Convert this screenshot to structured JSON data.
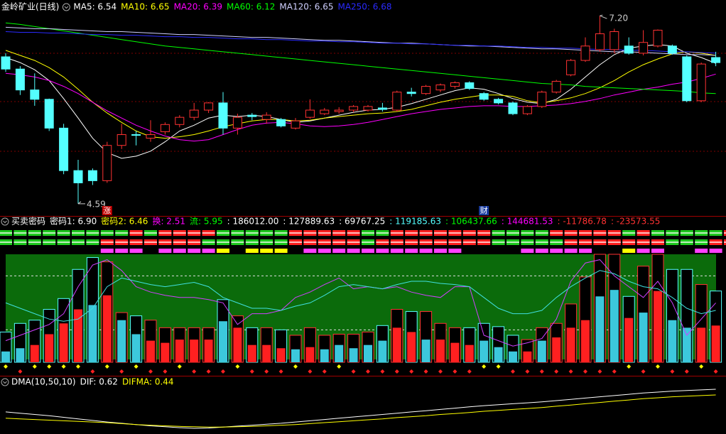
{
  "chart_data": [
    {
      "type": "candlestick",
      "title": "金岭矿业(日线)",
      "ylim": [
        4.46,
        7.34
      ],
      "up_color": "#ff3232",
      "down_color": "#54ffff",
      "open": [
        6.63,
        6.46,
        6.17,
        6.04,
        5.64,
        5.05,
        5.05,
        4.91,
        5.4,
        5.55,
        5.5,
        5.59,
        5.69,
        5.79,
        5.89,
        5.99,
        5.64,
        5.82,
        5.76,
        5.76,
        5.64,
        5.79,
        5.84,
        5.87,
        5.89,
        5.89,
        5.92,
        5.89,
        6.14,
        6.12,
        6.17,
        6.22,
        6.27,
        6.12,
        6.04,
        5.99,
        5.84,
        5.94,
        6.14,
        6.38,
        6.58,
        6.73,
        6.73,
        6.78,
        6.68,
        6.78,
        6.78,
        6.63,
        6.02,
        6.62
      ],
      "high": [
        6.68,
        6.5,
        6.4,
        6.05,
        5.7,
        5.2,
        5.08,
        5.45,
        5.7,
        5.6,
        5.75,
        5.72,
        5.82,
        5.99,
        6.0,
        6.14,
        5.84,
        5.85,
        5.86,
        5.78,
        5.78,
        6.04,
        5.92,
        5.93,
        5.96,
        5.96,
        5.99,
        6.16,
        6.2,
        6.24,
        6.26,
        6.29,
        6.29,
        6.14,
        6.06,
        6.01,
        5.96,
        6.16,
        6.31,
        6.6,
        6.9,
        7.2,
        7.02,
        6.9,
        7.0,
        7.01,
        6.8,
        6.65,
        6.55,
        6.7
      ],
      "low": [
        6.42,
        6.1,
        5.95,
        5.6,
        5.0,
        4.59,
        4.85,
        4.88,
        5.35,
        5.4,
        5.45,
        5.55,
        5.65,
        5.75,
        5.85,
        5.55,
        5.55,
        5.75,
        5.7,
        5.65,
        5.62,
        5.77,
        5.82,
        5.84,
        5.86,
        5.87,
        5.87,
        5.87,
        6.08,
        6.1,
        6.14,
        6.19,
        6.17,
        6.02,
        5.97,
        5.82,
        5.82,
        5.92,
        6.12,
        6.36,
        6.56,
        6.7,
        6.68,
        6.66,
        6.65,
        6.76,
        6.66,
        6.0,
        6.0,
        6.5
      ],
      "close": [
        6.46,
        6.17,
        6.04,
        5.64,
        5.05,
        4.88,
        4.91,
        5.4,
        5.55,
        5.54,
        5.55,
        5.69,
        5.79,
        5.89,
        5.99,
        5.64,
        5.79,
        5.8,
        5.82,
        5.67,
        5.74,
        5.89,
        5.89,
        5.89,
        5.94,
        5.94,
        5.9,
        6.14,
        6.12,
        6.22,
        6.24,
        6.27,
        6.19,
        6.04,
        5.99,
        5.84,
        5.94,
        6.14,
        6.29,
        6.58,
        6.78,
        6.95,
        6.98,
        6.68,
        6.83,
        7.0,
        6.68,
        6.02,
        6.53,
        6.55
      ],
      "series": [
        {
          "name": "MA5: 6.54",
          "color": "#ffffff",
          "values": [
            6.62,
            6.55,
            6.45,
            6.3,
            6.05,
            5.78,
            5.5,
            5.3,
            5.22,
            5.25,
            5.32,
            5.45,
            5.6,
            5.68,
            5.78,
            5.82,
            5.8,
            5.82,
            5.8,
            5.76,
            5.72,
            5.74,
            5.78,
            5.82,
            5.86,
            5.89,
            5.9,
            5.93,
            5.98,
            6.04,
            6.1,
            6.16,
            6.2,
            6.18,
            6.12,
            6.05,
            6.0,
            5.98,
            6.04,
            6.18,
            6.35,
            6.52,
            6.66,
            6.75,
            6.78,
            6.8,
            6.78,
            6.68,
            6.62,
            6.54
          ]
        },
        {
          "name": "MA10: 6.65",
          "color": "#ffff00",
          "values": [
            6.72,
            6.65,
            6.58,
            6.48,
            6.35,
            6.18,
            6.0,
            5.85,
            5.72,
            5.6,
            5.52,
            5.5,
            5.52,
            5.55,
            5.6,
            5.66,
            5.7,
            5.74,
            5.76,
            5.76,
            5.74,
            5.75,
            5.78,
            5.8,
            5.82,
            5.84,
            5.85,
            5.87,
            5.9,
            5.95,
            6.0,
            6.04,
            6.07,
            6.1,
            6.1,
            6.08,
            6.02,
            5.99,
            6.02,
            6.06,
            6.12,
            6.2,
            6.3,
            6.42,
            6.52,
            6.6,
            6.67,
            6.7,
            6.68,
            6.65
          ]
        },
        {
          "name": "MA20: 6.39",
          "color": "#ff00ff",
          "values": [
            6.4,
            6.38,
            6.35,
            6.3,
            6.22,
            6.12,
            6.0,
            5.88,
            5.78,
            5.68,
            5.6,
            5.53,
            5.48,
            5.46,
            5.48,
            5.55,
            5.62,
            5.68,
            5.71,
            5.72,
            5.7,
            5.67,
            5.66,
            5.67,
            5.69,
            5.72,
            5.76,
            5.8,
            5.84,
            5.87,
            5.9,
            5.92,
            5.94,
            5.95,
            5.95,
            5.94,
            5.94,
            5.95,
            5.96,
            5.98,
            6.01,
            6.05,
            6.1,
            6.14,
            6.18,
            6.21,
            6.25,
            6.28,
            6.33,
            6.39
          ]
        },
        {
          "name": "MA60: 6.12",
          "color": "#00ff00",
          "values": [
            7.1,
            7.08,
            7.05,
            7.02,
            6.99,
            6.96,
            6.93,
            6.9,
            6.87,
            6.84,
            6.81,
            6.78,
            6.76,
            6.74,
            6.72,
            6.7,
            6.68,
            6.66,
            6.64,
            6.62,
            6.6,
            6.58,
            6.56,
            6.54,
            6.52,
            6.5,
            6.48,
            6.46,
            6.44,
            6.42,
            6.4,
            6.38,
            6.36,
            6.34,
            6.32,
            6.3,
            6.28,
            6.26,
            6.25,
            6.24,
            6.22,
            6.21,
            6.2,
            6.19,
            6.18,
            6.17,
            6.16,
            6.15,
            6.13,
            6.12
          ]
        },
        {
          "name": "MA120: 6.65",
          "color": "#d0d0ff",
          "values": [
            7.04,
            7.03,
            7.02,
            7.02,
            7.01,
            7.0,
            6.99,
            6.98,
            6.98,
            6.97,
            6.96,
            6.95,
            6.94,
            6.94,
            6.93,
            6.92,
            6.91,
            6.9,
            6.9,
            6.89,
            6.88,
            6.87,
            6.86,
            6.86,
            6.85,
            6.84,
            6.83,
            6.82,
            6.82,
            6.81,
            6.8,
            6.79,
            6.78,
            6.78,
            6.77,
            6.76,
            6.75,
            6.74,
            6.74,
            6.73,
            6.72,
            6.71,
            6.7,
            6.7,
            6.69,
            6.68,
            6.67,
            6.66,
            6.66,
            6.65
          ]
        },
        {
          "name": "MA250: 6.68",
          "color": "#2a2aff",
          "values": [
            6.98,
            6.97,
            6.97,
            6.96,
            6.96,
            6.95,
            6.94,
            6.94,
            6.93,
            6.93,
            6.92,
            6.91,
            6.91,
            6.9,
            6.9,
            6.89,
            6.88,
            6.88,
            6.87,
            6.87,
            6.86,
            6.85,
            6.85,
            6.84,
            6.84,
            6.83,
            6.82,
            6.82,
            6.81,
            6.81,
            6.8,
            6.79,
            6.79,
            6.78,
            6.78,
            6.77,
            6.76,
            6.76,
            6.75,
            6.75,
            6.74,
            6.73,
            6.73,
            6.72,
            6.72,
            6.71,
            6.7,
            6.7,
            6.69,
            6.68
          ]
        }
      ],
      "high_label": "7.20",
      "low_label": "4.59",
      "events": [
        null,
        null,
        null,
        null,
        null,
        null,
        null,
        {
          "text": "涨",
          "color": "#c00000"
        },
        null,
        null,
        null,
        null,
        null,
        null,
        null,
        null,
        null,
        null,
        null,
        null,
        null,
        null,
        null,
        null,
        null,
        null,
        null,
        null,
        null,
        null,
        null,
        null,
        null,
        {
          "text": "财",
          "color": "#1a3ca0"
        },
        null,
        null,
        null,
        null,
        null,
        null,
        null,
        null,
        null,
        null,
        null,
        null,
        null,
        null,
        null,
        null
      ]
    },
    {
      "type": "bar",
      "title": "买卖密码",
      "readouts": [
        {
          "text": "密码1: 6.90",
          "color": "#ffffff"
        },
        {
          "text": "密码2: 6.46",
          "color": "#ffff00"
        },
        {
          "text": "换: 2.51",
          "color": "#ff00ff"
        },
        {
          "text": "流: 5.95",
          "color": "#00ff00"
        },
        {
          "text": ": 186012.00",
          "color": "#ffffff"
        },
        {
          "text": ": 127889.63",
          "color": "#ffffff"
        },
        {
          "text": ": 69767.25",
          "color": "#ffffff"
        },
        {
          "text": ": 119185.63",
          "color": "#54ffff"
        },
        {
          "text": ": 106437.66",
          "color": "#00ff00"
        },
        {
          "text": ": 144681.53",
          "color": "#ff00ff"
        },
        {
          "text": ": -11786.78",
          "color": "#ff3232"
        },
        {
          "text": ": -23573.55",
          "color": "#ff3232"
        }
      ],
      "ylim": [
        0,
        100
      ],
      "levels": [
        30,
        80
      ],
      "background": "#0b6b0b",
      "outline_values": [
        28,
        36,
        39,
        49,
        59,
        86,
        97,
        93,
        46,
        43,
        39,
        32,
        32,
        32,
        32,
        58,
        43,
        32,
        32,
        30,
        25,
        32,
        25,
        26,
        26,
        28,
        34,
        49,
        47,
        47,
        36,
        32,
        32,
        36,
        33,
        25,
        21,
        32,
        36,
        54,
        79,
        100,
        100,
        61,
        89,
        100,
        86,
        86,
        72,
        66
      ],
      "fill_values": [
        10,
        13,
        16,
        26,
        36,
        49,
        53,
        62,
        39,
        26,
        20,
        18,
        21,
        21,
        21,
        38,
        32,
        16,
        16,
        13,
        12,
        14,
        12,
        16,
        13,
        16,
        20,
        32,
        28,
        21,
        21,
        18,
        16,
        20,
        14,
        10,
        10,
        20,
        23,
        32,
        39,
        61,
        67,
        41,
        46,
        66,
        39,
        32,
        32,
        34
      ],
      "fill_codes": "CCRRRRCRCCRRRRRCRRRRCRCCCCCRRCRRRCCCRCRRRCCRCRCCRR",
      "code_colors": {
        "G": "#1ec81e",
        "R": "#ff2020",
        "M": "#ff40ff",
        "Y": "#ffff00",
        "C": "#3cc8dc"
      },
      "rows": [
        "GGGGGGGGGRGRRRRGGGGGRRRRRGGRRRRRRRGGGGRRRRRGRGGGGGRG",
        "GGGGGGGRRRRRRRGGGGGGRRRRRGRRRRRRRRGGGGGRRRRRRRGGGRRG",
        "-------MMM-MMMMY-YYY-MMMMMMMMMMM----MMMMM--YMM--MM"
      ],
      "diamonds": "YRYYYYRYRYRRYRRRYRRRYRRYRRRRRRRRRYYRRRRRRRRYRYRRYR",
      "series": [
        {
          "color": "#d040ff",
          "values": [
            20,
            25,
            30,
            35,
            45,
            70,
            90,
            95,
            85,
            70,
            65,
            62,
            60,
            60,
            58,
            55,
            35,
            45,
            45,
            48,
            60,
            65,
            72,
            78,
            68,
            70,
            68,
            70,
            65,
            62,
            60,
            70,
            70,
            25,
            20,
            15,
            18,
            22,
            40,
            75,
            92,
            95,
            80,
            70,
            60,
            75,
            55,
            25,
            40,
            55
          ]
        },
        {
          "color": "#40e0e0",
          "values": [
            55,
            50,
            45,
            40,
            38,
            40,
            50,
            70,
            78,
            75,
            72,
            70,
            72,
            74,
            70,
            60,
            55,
            50,
            50,
            48,
            52,
            55,
            62,
            70,
            72,
            70,
            68,
            72,
            75,
            75,
            73,
            72,
            70,
            60,
            50,
            45,
            45,
            48,
            60,
            70,
            78,
            85,
            82,
            75,
            70,
            68,
            60,
            50,
            45,
            48
          ]
        }
      ]
    },
    {
      "type": "line",
      "title": "DMA(10,50,10)",
      "ylim": [
        -0.8,
        0.98
      ],
      "series": [
        {
          "name": "DIF: 0.62",
          "color": "#ffffff",
          "values": [
            -0.1,
            -0.14,
            -0.18,
            -0.22,
            -0.27,
            -0.32,
            -0.37,
            -0.42,
            -0.46,
            -0.5,
            -0.54,
            -0.57,
            -0.6,
            -0.62,
            -0.61,
            -0.58,
            -0.55,
            -0.52,
            -0.49,
            -0.46,
            -0.42,
            -0.38,
            -0.34,
            -0.3,
            -0.26,
            -0.22,
            -0.18,
            -0.14,
            -0.1,
            -0.06,
            -0.02,
            0.02,
            0.06,
            0.1,
            0.13,
            0.16,
            0.19,
            0.22,
            0.26,
            0.3,
            0.34,
            0.38,
            0.42,
            0.46,
            0.5,
            0.53,
            0.56,
            0.58,
            0.6,
            0.62
          ]
        },
        {
          "name": "DIFMA: 0.44",
          "color": "#ffff00",
          "values": [
            -0.3,
            -0.32,
            -0.34,
            -0.36,
            -0.38,
            -0.4,
            -0.42,
            -0.44,
            -0.47,
            -0.5,
            -0.52,
            -0.54,
            -0.56,
            -0.57,
            -0.58,
            -0.58,
            -0.57,
            -0.56,
            -0.54,
            -0.52,
            -0.5,
            -0.47,
            -0.44,
            -0.41,
            -0.38,
            -0.35,
            -0.32,
            -0.28,
            -0.25,
            -0.22,
            -0.18,
            -0.15,
            -0.12,
            -0.08,
            -0.05,
            -0.02,
            0.01,
            0.04,
            0.08,
            0.12,
            0.16,
            0.2,
            0.24,
            0.28,
            0.32,
            0.35,
            0.38,
            0.4,
            0.42,
            0.44
          ]
        }
      ]
    }
  ]
}
